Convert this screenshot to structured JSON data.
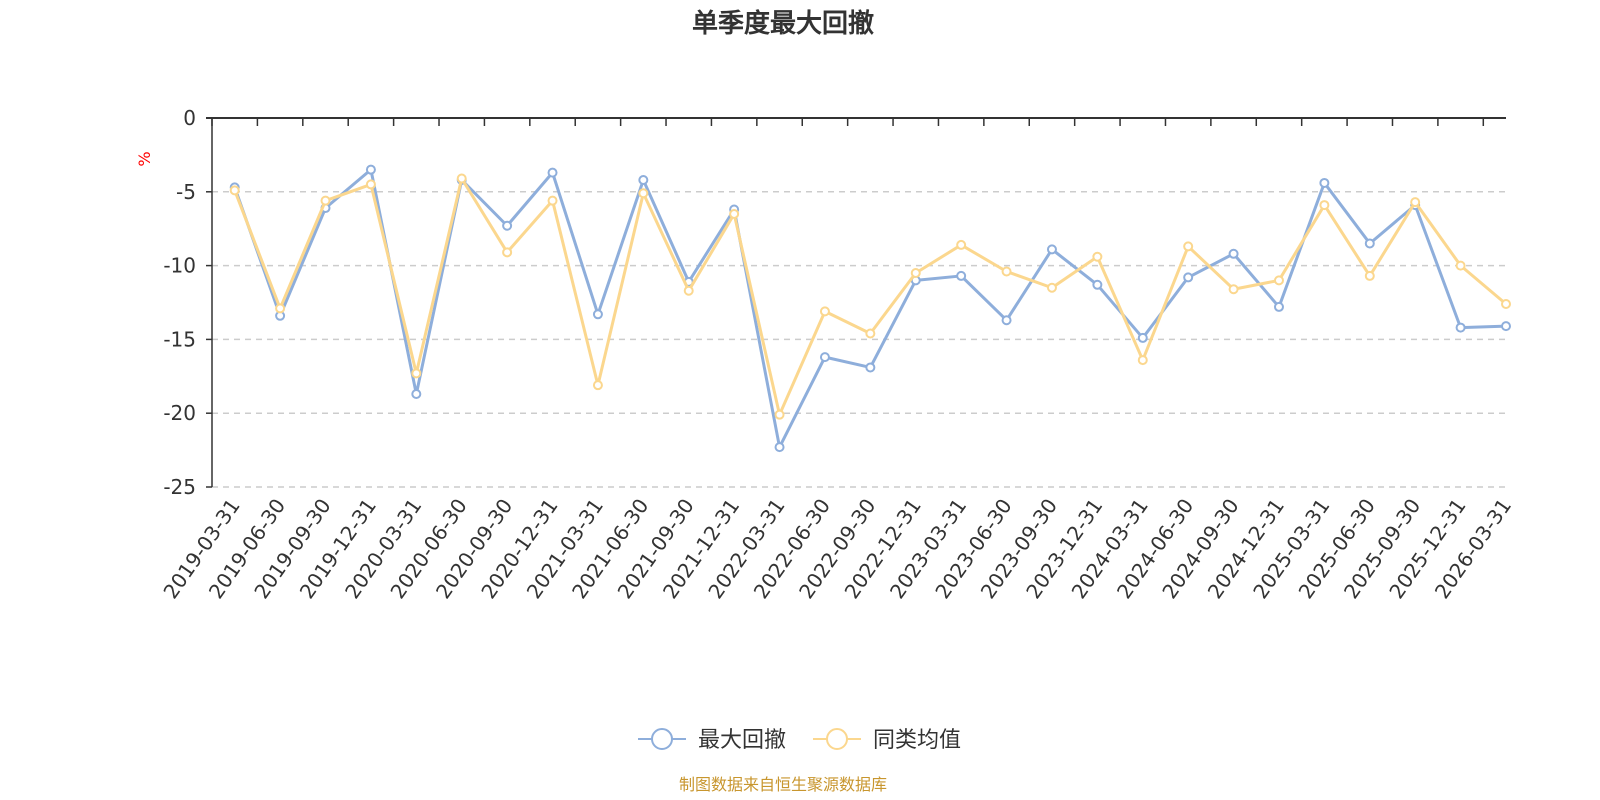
{
  "chart_data": {
    "type": "line",
    "title": "单季度最大回撤",
    "ylabel": "%",
    "ylim": [
      -25,
      0
    ],
    "yticks": [
      0,
      -5,
      -10,
      -15,
      -20,
      -25
    ],
    "grid": true,
    "legend_position": "bottom-center",
    "categories": [
      "2019-03-31",
      "2019-06-30",
      "2019-09-30",
      "2019-12-31",
      "2020-03-31",
      "2020-06-30",
      "2020-09-30",
      "2020-12-31",
      "2021-03-31",
      "2021-06-30",
      "2021-09-30",
      "2021-12-31",
      "2022-03-31",
      "2022-06-30",
      "2022-09-30",
      "2022-12-31",
      "2023-03-31",
      "2023-06-30",
      "2023-09-30",
      "2023-12-31",
      "2024-03-31",
      "2024-06-30",
      "2024-09-30",
      "2024-12-31",
      "2025-03-31",
      "2025-06-30",
      "2025-09-30",
      "2025-12-31",
      "2026-03-31"
    ],
    "series": [
      {
        "name": "最大回撤",
        "color": "#8eaedb",
        "values": [
          -4.7,
          -13.4,
          -6.1,
          -3.5,
          -18.7,
          -4.2,
          -7.3,
          -3.7,
          -13.3,
          -4.2,
          -11.1,
          -6.2,
          -22.3,
          -16.2,
          -16.9,
          -11.0,
          -10.7,
          -13.7,
          -8.9,
          -11.3,
          -14.9,
          -10.8,
          -9.2,
          -12.8,
          -4.4,
          -8.5,
          -5.9,
          -14.2,
          -14.1
        ]
      },
      {
        "name": "同类均值",
        "color": "#fbd78e",
        "values": [
          -4.9,
          -12.9,
          -5.6,
          -4.5,
          -17.3,
          -4.1,
          -9.1,
          -5.6,
          -18.1,
          -5.1,
          -11.7,
          -6.5,
          -20.1,
          -13.1,
          -14.6,
          -10.5,
          -8.6,
          -10.4,
          -11.5,
          -9.4,
          -16.4,
          -8.7,
          -11.6,
          -11.0,
          -5.9,
          -10.7,
          -5.7,
          -10.0,
          -12.6
        ]
      }
    ]
  },
  "source_text": "制图数据来自恒生聚源数据库",
  "source_color": "#c8962e"
}
